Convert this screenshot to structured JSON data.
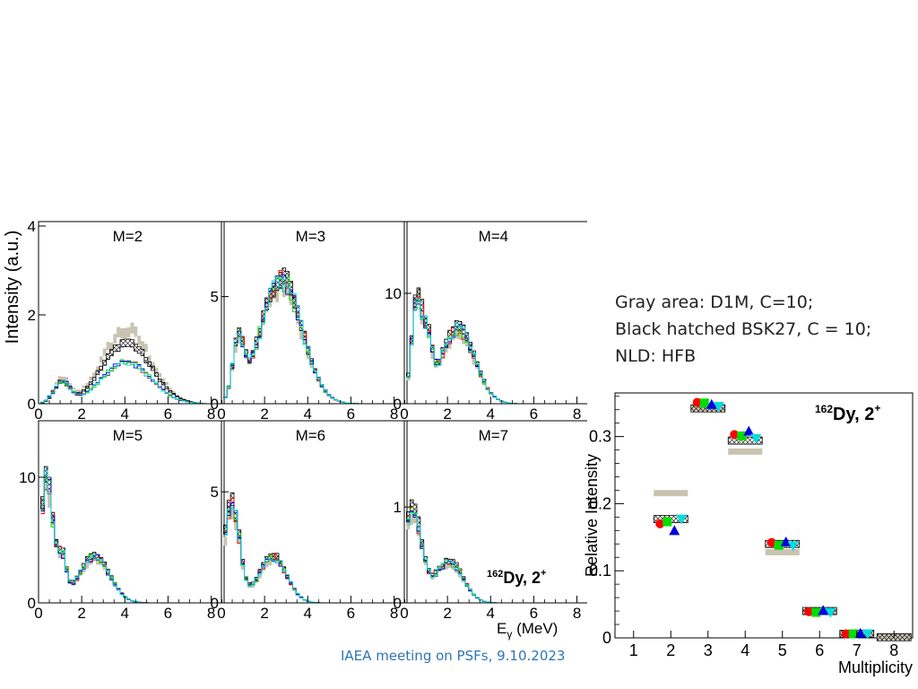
{
  "notes": {
    "line1": "Gray area: D1M, C=10;",
    "line2": "Black hatched BSK27, C = 10;",
    "line3": "NLD: HFB"
  },
  "footer": "IAEA meeting on PSFs, 9.10.2023",
  "colors": {
    "d1m_band": "#c8c4b0",
    "bsk27_hatch": "#000000",
    "series": [
      "#ff0000",
      "#00dd00",
      "#0000dd",
      "#00dddd"
    ]
  },
  "spectra": {
    "ylabel": "Intensity (a.u.)",
    "xlabel_main": "E",
    "xlabel_sub": "γ",
    "xlabel_unit": " (MeV)",
    "nucleus_mass": "162",
    "nucleus_label": "Dy, 2",
    "nucleus_sup": "+",
    "xticks": [
      "0",
      "2",
      "4",
      "6",
      "8"
    ],
    "panels": [
      {
        "title": "M=2",
        "yticks": [
          "0",
          "2",
          "4"
        ],
        "ylim": [
          0,
          4.1
        ]
      },
      {
        "title": "M=3",
        "yticks": [
          "0",
          "5"
        ],
        "ylim": [
          0,
          8.5
        ]
      },
      {
        "title": "M=4",
        "yticks": [
          "0",
          "10"
        ],
        "ylim": [
          0,
          16.5
        ]
      },
      {
        "title": "M=5",
        "yticks": [
          "0",
          "10"
        ],
        "ylim": [
          0,
          14.5
        ]
      },
      {
        "title": "M=6",
        "yticks": [
          "0",
          "5"
        ],
        "ylim": [
          0,
          8.2
        ]
      },
      {
        "title": "M=7",
        "yticks": [
          "0",
          "1"
        ],
        "ylim": [
          0,
          1.9
        ]
      }
    ]
  },
  "chart_data": {
    "type": "scatter",
    "xlabel": "Multiplicity",
    "ylabel": "Relative Intensity",
    "xlim": [
      0.5,
      8.5
    ],
    "ylim": [
      0,
      0.365
    ],
    "xticks": [
      "1",
      "2",
      "3",
      "4",
      "5",
      "6",
      "7",
      "8"
    ],
    "yticks": [
      "0",
      "0.1",
      "0.2",
      "0.3"
    ],
    "annotation_mass": "162",
    "annotation": "Dy, 2",
    "annotation_sup": "+",
    "d1m_band": [
      {
        "x": 2,
        "y": 0.215
      },
      {
        "x": 3,
        "y": 0.342
      },
      {
        "x": 4,
        "y": 0.277
      },
      {
        "x": 5,
        "y": 0.127
      },
      {
        "x": 6,
        "y": 0.038
      },
      {
        "x": 7,
        "y": 0.005
      },
      {
        "x": 8,
        "y": 0.001
      }
    ],
    "bsk27_band": [
      {
        "x": 2,
        "y": 0.177
      },
      {
        "x": 3,
        "y": 0.342
      },
      {
        "x": 4,
        "y": 0.294
      },
      {
        "x": 5,
        "y": 0.14
      },
      {
        "x": 6,
        "y": 0.04
      },
      {
        "x": 7,
        "y": 0.006
      },
      {
        "x": 8,
        "y": 0.001
      }
    ],
    "series": [
      {
        "marker": "circle",
        "color": "#ff0000",
        "x": [
          2,
          3,
          4,
          5,
          6,
          7
        ],
        "y": [
          0.17,
          0.351,
          0.303,
          0.142,
          0.039,
          0.006
        ]
      },
      {
        "marker": "square",
        "color": "#00dd00",
        "x": [
          2,
          3,
          4,
          5,
          6,
          7
        ],
        "y": [
          0.173,
          0.35,
          0.301,
          0.138,
          0.038,
          0.006
        ]
      },
      {
        "marker": "triangle-up",
        "color": "#0000dd",
        "x": [
          2,
          3,
          4,
          5,
          6,
          7
        ],
        "y": [
          0.16,
          0.348,
          0.308,
          0.143,
          0.041,
          0.007
        ]
      },
      {
        "marker": "triangle-down",
        "color": "#00dddd",
        "x": [
          2,
          3,
          4,
          5,
          6,
          7
        ],
        "y": [
          0.177,
          0.345,
          0.297,
          0.137,
          0.038,
          0.006
        ]
      }
    ]
  }
}
